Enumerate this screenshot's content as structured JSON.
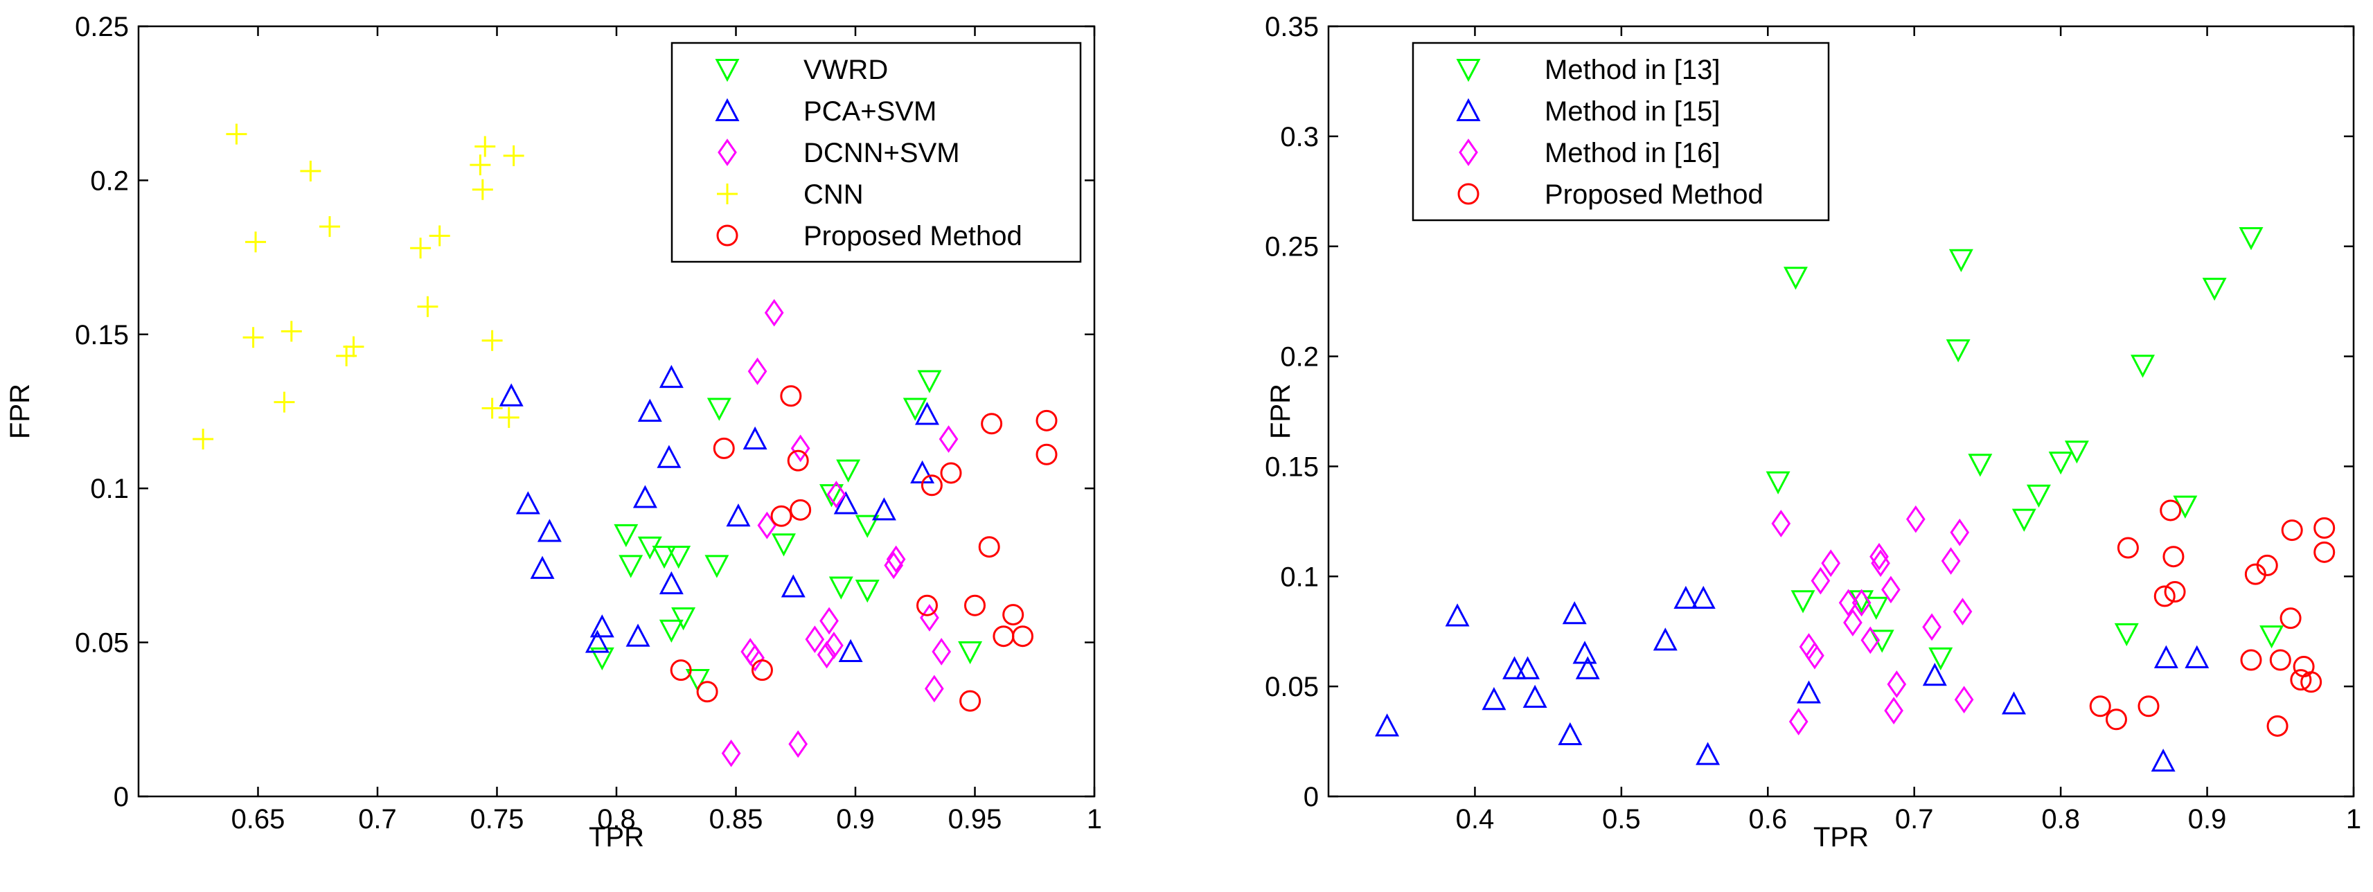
{
  "colors": {
    "green": "#00ff00",
    "blue": "#0000ff",
    "magenta": "#ff00ff",
    "yellow": "#ffff00",
    "red": "#ff0000"
  },
  "chart_data": [
    {
      "type": "scatter",
      "title": "",
      "xlabel": "TPR",
      "ylabel": "FPR",
      "xlim": [
        0.6,
        1.0
      ],
      "ylim": [
        0,
        0.25
      ],
      "xticks": [
        0.65,
        0.7,
        0.75,
        0.8,
        0.85,
        0.9,
        0.95,
        1.0
      ],
      "xtick_labels": [
        "0.65",
        "0.7",
        "0.75",
        "0.8",
        "0.85",
        "0.9",
        "0.95",
        "1"
      ],
      "yticks": [
        0,
        0.05,
        0.1,
        0.15,
        0.2,
        0.25
      ],
      "ytick_labels": [
        "0",
        "0.05",
        "0.1",
        "0.15",
        "0.2",
        "0.25"
      ],
      "legend_position": "top-right",
      "series": [
        {
          "name": "VWRD",
          "marker": "triangle-down",
          "color": "#00ff00",
          "points": [
            [
              0.794,
              0.045
            ],
            [
              0.804,
              0.085
            ],
            [
              0.806,
              0.075
            ],
            [
              0.814,
              0.081
            ],
            [
              0.82,
              0.078
            ],
            [
              0.823,
              0.054
            ],
            [
              0.826,
              0.078
            ],
            [
              0.828,
              0.058
            ],
            [
              0.834,
              0.038
            ],
            [
              0.842,
              0.075
            ],
            [
              0.843,
              0.126
            ],
            [
              0.87,
              0.082
            ],
            [
              0.89,
              0.098
            ],
            [
              0.894,
              0.068
            ],
            [
              0.897,
              0.106
            ],
            [
              0.905,
              0.088
            ],
            [
              0.905,
              0.067
            ],
            [
              0.925,
              0.126
            ],
            [
              0.931,
              0.135
            ],
            [
              0.948,
              0.047
            ]
          ]
        },
        {
          "name": "PCA+SVM",
          "marker": "triangle-up",
          "color": "#0000ff",
          "points": [
            [
              0.756,
              0.13
            ],
            [
              0.763,
              0.095
            ],
            [
              0.769,
              0.074
            ],
            [
              0.772,
              0.086
            ],
            [
              0.792,
              0.05
            ],
            [
              0.794,
              0.055
            ],
            [
              0.809,
              0.052
            ],
            [
              0.812,
              0.097
            ],
            [
              0.814,
              0.125
            ],
            [
              0.822,
              0.11
            ],
            [
              0.823,
              0.136
            ],
            [
              0.823,
              0.069
            ],
            [
              0.851,
              0.091
            ],
            [
              0.858,
              0.116
            ],
            [
              0.874,
              0.068
            ],
            [
              0.896,
              0.095
            ],
            [
              0.898,
              0.047
            ],
            [
              0.912,
              0.093
            ],
            [
              0.928,
              0.105
            ],
            [
              0.93,
              0.124
            ]
          ]
        },
        {
          "name": "DCNN+SVM",
          "marker": "diamond",
          "color": "#ff00ff",
          "points": [
            [
              0.848,
              0.014
            ],
            [
              0.856,
              0.047
            ],
            [
              0.858,
              0.045
            ],
            [
              0.859,
              0.138
            ],
            [
              0.863,
              0.088
            ],
            [
              0.866,
              0.157
            ],
            [
              0.876,
              0.017
            ],
            [
              0.877,
              0.113
            ],
            [
              0.883,
              0.051
            ],
            [
              0.888,
              0.046
            ],
            [
              0.889,
              0.057
            ],
            [
              0.891,
              0.049
            ],
            [
              0.892,
              0.098
            ],
            [
              0.916,
              0.075
            ],
            [
              0.917,
              0.077
            ],
            [
              0.931,
              0.058
            ],
            [
              0.933,
              0.035
            ],
            [
              0.936,
              0.047
            ],
            [
              0.939,
              0.116
            ]
          ]
        },
        {
          "name": "CNN",
          "marker": "plus",
          "color": "#ffff00",
          "points": [
            [
              0.627,
              0.116
            ],
            [
              0.641,
              0.215
            ],
            [
              0.648,
              0.149
            ],
            [
              0.649,
              0.18
            ],
            [
              0.661,
              0.128
            ],
            [
              0.664,
              0.151
            ],
            [
              0.672,
              0.203
            ],
            [
              0.68,
              0.185
            ],
            [
              0.687,
              0.143
            ],
            [
              0.69,
              0.146
            ],
            [
              0.718,
              0.178
            ],
            [
              0.721,
              0.159
            ],
            [
              0.726,
              0.182
            ],
            [
              0.743,
              0.205
            ],
            [
              0.744,
              0.197
            ],
            [
              0.745,
              0.211
            ],
            [
              0.748,
              0.148
            ],
            [
              0.748,
              0.126
            ],
            [
              0.755,
              0.123
            ],
            [
              0.757,
              0.208
            ]
          ]
        },
        {
          "name": "Proposed Method",
          "marker": "circle",
          "color": "#ff0000",
          "points": [
            [
              0.827,
              0.041
            ],
            [
              0.838,
              0.034
            ],
            [
              0.845,
              0.113
            ],
            [
              0.861,
              0.041
            ],
            [
              0.869,
              0.091
            ],
            [
              0.873,
              0.13
            ],
            [
              0.876,
              0.109
            ],
            [
              0.877,
              0.093
            ],
            [
              0.93,
              0.062
            ],
            [
              0.932,
              0.101
            ],
            [
              0.94,
              0.105
            ],
            [
              0.948,
              0.031
            ],
            [
              0.95,
              0.062
            ],
            [
              0.956,
              0.081
            ],
            [
              0.957,
              0.121
            ],
            [
              0.962,
              0.052
            ],
            [
              0.966,
              0.059
            ],
            [
              0.97,
              0.052
            ],
            [
              0.98,
              0.122
            ],
            [
              0.98,
              0.111
            ]
          ]
        }
      ]
    },
    {
      "type": "scatter",
      "title": "",
      "xlabel": "TPR",
      "ylabel": "FPR",
      "xlim": [
        0.3,
        1.0
      ],
      "ylim": [
        0,
        0.35
      ],
      "xticks": [
        0.4,
        0.5,
        0.6,
        0.7,
        0.8,
        0.9,
        1.0
      ],
      "xtick_labels": [
        "0.4",
        "0.5",
        "0.6",
        "0.7",
        "0.8",
        "0.9",
        "1"
      ],
      "yticks": [
        0,
        0.05,
        0.1,
        0.15,
        0.2,
        0.25,
        0.3,
        0.35
      ],
      "ytick_labels": [
        "0",
        "0.05",
        "0.1",
        "0.15",
        "0.2",
        "0.25",
        "0.3",
        "0.35"
      ],
      "legend_position": "top-left",
      "series": [
        {
          "name": "Method in [13]",
          "marker": "triangle-down",
          "color": "#00ff00",
          "points": [
            [
              0.607,
              0.143
            ],
            [
              0.619,
              0.236
            ],
            [
              0.624,
              0.089
            ],
            [
              0.664,
              0.089
            ],
            [
              0.674,
              0.086
            ],
            [
              0.678,
              0.071
            ],
            [
              0.718,
              0.063
            ],
            [
              0.73,
              0.203
            ],
            [
              0.732,
              0.244
            ],
            [
              0.745,
              0.151
            ],
            [
              0.775,
              0.126
            ],
            [
              0.785,
              0.137
            ],
            [
              0.8,
              0.152
            ],
            [
              0.811,
              0.157
            ],
            [
              0.845,
              0.074
            ],
            [
              0.856,
              0.196
            ],
            [
              0.885,
              0.132
            ],
            [
              0.905,
              0.231
            ],
            [
              0.93,
              0.254
            ],
            [
              0.944,
              0.073
            ]
          ]
        },
        {
          "name": "Method in [15]",
          "marker": "triangle-up",
          "color": "#0000ff",
          "points": [
            [
              0.34,
              0.032
            ],
            [
              0.388,
              0.082
            ],
            [
              0.413,
              0.044
            ],
            [
              0.427,
              0.058
            ],
            [
              0.436,
              0.058
            ],
            [
              0.441,
              0.045
            ],
            [
              0.465,
              0.028
            ],
            [
              0.468,
              0.083
            ],
            [
              0.475,
              0.065
            ],
            [
              0.477,
              0.058
            ],
            [
              0.53,
              0.071
            ],
            [
              0.544,
              0.09
            ],
            [
              0.556,
              0.09
            ],
            [
              0.559,
              0.019
            ],
            [
              0.628,
              0.047
            ],
            [
              0.714,
              0.055
            ],
            [
              0.768,
              0.042
            ],
            [
              0.87,
              0.016
            ],
            [
              0.872,
              0.063
            ],
            [
              0.893,
              0.063
            ]
          ]
        },
        {
          "name": "Method in [16]",
          "marker": "diamond",
          "color": "#ff00ff",
          "points": [
            [
              0.609,
              0.124
            ],
            [
              0.621,
              0.034
            ],
            [
              0.628,
              0.068
            ],
            [
              0.632,
              0.064
            ],
            [
              0.636,
              0.098
            ],
            [
              0.643,
              0.106
            ],
            [
              0.655,
              0.088
            ],
            [
              0.658,
              0.079
            ],
            [
              0.664,
              0.088
            ],
            [
              0.67,
              0.071
            ],
            [
              0.676,
              0.109
            ],
            [
              0.677,
              0.106
            ],
            [
              0.684,
              0.094
            ],
            [
              0.686,
              0.039
            ],
            [
              0.688,
              0.051
            ],
            [
              0.701,
              0.126
            ],
            [
              0.712,
              0.077
            ],
            [
              0.725,
              0.107
            ],
            [
              0.731,
              0.12
            ],
            [
              0.733,
              0.084
            ],
            [
              0.734,
              0.044
            ]
          ]
        },
        {
          "name": "Proposed Method",
          "marker": "circle",
          "color": "#ff0000",
          "points": [
            [
              0.827,
              0.041
            ],
            [
              0.838,
              0.035
            ],
            [
              0.846,
              0.113
            ],
            [
              0.86,
              0.041
            ],
            [
              0.871,
              0.091
            ],
            [
              0.875,
              0.13
            ],
            [
              0.877,
              0.109
            ],
            [
              0.878,
              0.093
            ],
            [
              0.93,
              0.062
            ],
            [
              0.933,
              0.101
            ],
            [
              0.941,
              0.105
            ],
            [
              0.948,
              0.032
            ],
            [
              0.95,
              0.062
            ],
            [
              0.957,
              0.081
            ],
            [
              0.958,
              0.121
            ],
            [
              0.964,
              0.053
            ],
            [
              0.966,
              0.059
            ],
            [
              0.971,
              0.052
            ],
            [
              0.98,
              0.122
            ],
            [
              0.98,
              0.111
            ]
          ]
        }
      ]
    }
  ]
}
